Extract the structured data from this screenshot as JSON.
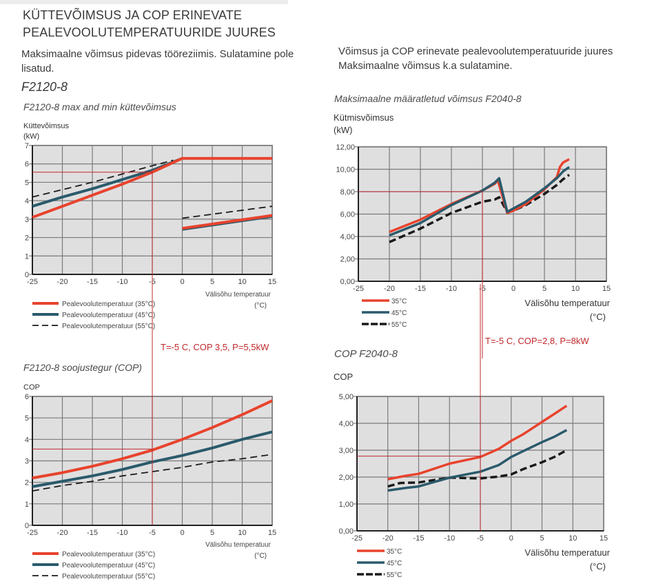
{
  "header": {
    "title": "KÜTTEVÕIMSUS JA COP ERINEVATE PEALEVOOLUTEMPERATUURIDE JUURES",
    "desc_left": "Maksimaalne võimsus pidevas tööreziimis. Sulatamine pole lisatud.",
    "desc_right": "Võimsus ja COP erinevate pealevoolutemperatuuride juures Maksimaalne võimsus k.a sulatamine.",
    "model_left": "F2120-8"
  },
  "annotations": {
    "left": "T=-5 C, COP 3,5, P=5,5kW",
    "right": "T=-5 C, COP=2,8, P=8kW"
  },
  "colors": {
    "series_35": "#e8432d",
    "series_45": "#2a5a6b",
    "series_55": "#1a1a1a",
    "plot_bg": "#e0dfe0",
    "grid": "#7a7a7a",
    "marker_line": "#c0282c"
  },
  "chart_data": [
    {
      "id": "f2120_power",
      "type": "line",
      "title": "F2120-8 max and min küttevõimsus",
      "ylabel": "Küttevõimsus (kW)",
      "xlabel": "Välisõhu temperatuur (°C)",
      "xlim": [
        -25,
        15
      ],
      "ylim": [
        0,
        7
      ],
      "xticks": [
        -25,
        -20,
        -15,
        -10,
        -5,
        0,
        5,
        10,
        15
      ],
      "yticks": [
        0,
        1,
        2,
        3,
        4,
        5,
        6,
        7
      ],
      "ytick_labels": [
        "0",
        "1",
        "2",
        "3",
        "4",
        "5",
        "6",
        "7"
      ],
      "grid": true,
      "legend_position": "bottom-left",
      "series": [
        {
          "name": "Pealevoolutemperatuur (35°C)",
          "key": "35",
          "segments": [
            [
              [
                -25,
                3.1
              ],
              [
                -20,
                3.7
              ],
              [
                -15,
                4.3
              ],
              [
                -10,
                4.9
              ],
              [
                -5,
                5.55
              ],
              [
                0,
                6.3
              ],
              [
                15,
                6.3
              ]
            ],
            [
              [
                0,
                2.5
              ],
              [
                15,
                3.2
              ]
            ]
          ]
        },
        {
          "name": "Pealevoolutemperatuur (45°C)",
          "key": "45",
          "segments": [
            [
              [
                -25,
                3.7
              ],
              [
                -20,
                4.2
              ],
              [
                -15,
                4.65
              ],
              [
                -10,
                5.15
              ],
              [
                -5,
                5.65
              ],
              [
                0,
                6.3
              ]
            ],
            [
              [
                0,
                2.45
              ],
              [
                15,
                3.15
              ]
            ]
          ]
        },
        {
          "name": "Pealevoolutemperatuur (55°C)",
          "key": "55",
          "segments": [
            [
              [
                -25,
                4.2
              ],
              [
                -20,
                4.6
              ],
              [
                -15,
                5.0
              ],
              [
                -10,
                5.45
              ],
              [
                -5,
                5.9
              ],
              [
                -1.5,
                6.2
              ]
            ],
            [
              [
                0,
                3.05
              ],
              [
                15,
                3.7
              ]
            ]
          ]
        }
      ],
      "marker": {
        "x": -5,
        "y": 5.55
      }
    },
    {
      "id": "f2040_power",
      "type": "line",
      "title": "Maksimaalne määratletud võimsus F2040-8",
      "ylabel": "Kütmisvõimsus (kW)",
      "xlabel": "Välisõhu temperatuur (°C)",
      "xlim": [
        -25,
        15
      ],
      "ylim": [
        0,
        12
      ],
      "xticks": [
        -25,
        -20,
        -15,
        -10,
        -5,
        0,
        5,
        10,
        15
      ],
      "yticks": [
        0,
        2,
        4,
        6,
        8,
        10,
        12
      ],
      "ytick_labels": [
        "0,00",
        "2,00",
        "4,00",
        "6,00",
        "8,00",
        "10,00",
        "12,00"
      ],
      "grid": true,
      "legend_position": "bottom-left",
      "series": [
        {
          "name": "35°C",
          "key": "35",
          "segments": [
            [
              [
                -20,
                4.4
              ],
              [
                -15,
                5.5
              ],
              [
                -10,
                6.9
              ],
              [
                -5,
                8.1
              ],
              [
                -3,
                8.7
              ],
              [
                -2.5,
                9.0
              ],
              [
                -1,
                6.1
              ],
              [
                0,
                6.3
              ],
              [
                2,
                6.9
              ],
              [
                5,
                8.2
              ],
              [
                7,
                9.3
              ],
              [
                7.5,
                10.2
              ],
              [
                8,
                10.6
              ],
              [
                9,
                10.9
              ]
            ]
          ]
        },
        {
          "name": "45°C",
          "key": "45",
          "segments": [
            [
              [
                -20,
                4.1
              ],
              [
                -15,
                5.2
              ],
              [
                -10,
                6.8
              ],
              [
                -5,
                8.1
              ],
              [
                -3,
                8.8
              ],
              [
                -2.3,
                9.2
              ],
              [
                -1,
                6.2
              ],
              [
                0,
                6.5
              ],
              [
                2,
                7.1
              ],
              [
                5,
                8.3
              ],
              [
                7,
                9.2
              ],
              [
                8,
                9.8
              ],
              [
                9,
                10.2
              ]
            ]
          ]
        },
        {
          "name": "55°C",
          "key": "55",
          "segments": [
            [
              [
                -20,
                3.5
              ],
              [
                -15,
                4.7
              ],
              [
                -10,
                6.1
              ],
              [
                -5,
                7.1
              ],
              [
                -3,
                7.3
              ],
              [
                -2.3,
                7.5
              ],
              [
                -1,
                6.2
              ],
              [
                0,
                6.3
              ],
              [
                2,
                6.8
              ],
              [
                5,
                7.8
              ],
              [
                7,
                8.6
              ],
              [
                8,
                9.1
              ],
              [
                9,
                9.5
              ]
            ]
          ]
        }
      ],
      "marker": {
        "x": -5,
        "y": 8.0
      }
    },
    {
      "id": "f2120_cop",
      "type": "line",
      "title": "F2120-8 soojustegur (COP)",
      "ylabel": "COP",
      "xlabel": "Välisõhu temperatuur (°C)",
      "xlim": [
        -25,
        15
      ],
      "ylim": [
        0,
        6
      ],
      "xticks": [
        -25,
        -20,
        -15,
        -10,
        -5,
        0,
        5,
        10,
        15
      ],
      "yticks": [
        0,
        1,
        2,
        3,
        4,
        5,
        6
      ],
      "ytick_labels": [
        "0",
        "1",
        "2",
        "3",
        "4",
        "5",
        "6"
      ],
      "grid": true,
      "legend_position": "bottom-left",
      "series": [
        {
          "name": "Pealevoolutemperatuur (35°C)",
          "key": "35",
          "segments": [
            [
              [
                -25,
                2.2
              ],
              [
                -20,
                2.45
              ],
              [
                -15,
                2.75
              ],
              [
                -10,
                3.1
              ],
              [
                -5,
                3.5
              ],
              [
                0,
                4.0
              ],
              [
                5,
                4.55
              ],
              [
                10,
                5.15
              ],
              [
                15,
                5.8
              ]
            ]
          ]
        },
        {
          "name": "Pealevoolutemperatuur (45°C)",
          "key": "45",
          "segments": [
            [
              [
                -25,
                1.8
              ],
              [
                -20,
                2.05
              ],
              [
                -15,
                2.3
              ],
              [
                -10,
                2.6
              ],
              [
                -5,
                2.95
              ],
              [
                0,
                3.25
              ],
              [
                5,
                3.6
              ],
              [
                10,
                4.0
              ],
              [
                15,
                4.35
              ]
            ]
          ]
        },
        {
          "name": "Pealevoolutemperatuur (55°C)",
          "key": "55",
          "segments": [
            [
              [
                -25,
                1.6
              ],
              [
                -20,
                1.85
              ],
              [
                -15,
                2.05
              ],
              [
                -10,
                2.3
              ],
              [
                -5,
                2.5
              ],
              [
                0,
                2.7
              ],
              [
                5,
                2.95
              ],
              [
                10,
                3.1
              ],
              [
                15,
                3.3
              ]
            ]
          ]
        }
      ],
      "marker": {
        "x": -5,
        "y": 3.55
      }
    },
    {
      "id": "f2040_cop",
      "type": "line",
      "title": "COP F2040-8",
      "ylabel": "COP",
      "xlabel": "Välisõhu temperatuur (°C)",
      "xlim": [
        -25,
        15
      ],
      "ylim": [
        0,
        5
      ],
      "xticks": [
        -25,
        -20,
        -15,
        -10,
        -5,
        0,
        5,
        10,
        15
      ],
      "yticks": [
        0,
        1,
        2,
        3,
        4,
        5
      ],
      "ytick_labels": [
        "0,00",
        "1,00",
        "2,00",
        "3,00",
        "4,00",
        "5,00"
      ],
      "grid": true,
      "legend_position": "bottom-left",
      "series": [
        {
          "name": "35°C",
          "key": "35",
          "segments": [
            [
              [
                -20,
                1.92
              ],
              [
                -17,
                2.05
              ],
              [
                -15,
                2.12
              ],
              [
                -10,
                2.5
              ],
              [
                -5,
                2.75
              ],
              [
                -2,
                3.05
              ],
              [
                0,
                3.35
              ],
              [
                2,
                3.6
              ],
              [
                5,
                4.05
              ],
              [
                7,
                4.35
              ],
              [
                9,
                4.65
              ]
            ]
          ]
        },
        {
          "name": "45°C",
          "key": "45",
          "segments": [
            [
              [
                -20,
                1.5
              ],
              [
                -17,
                1.6
              ],
              [
                -15,
                1.65
              ],
              [
                -10,
                1.98
              ],
              [
                -5,
                2.2
              ],
              [
                -2,
                2.45
              ],
              [
                0,
                2.75
              ],
              [
                2,
                2.97
              ],
              [
                5,
                3.3
              ],
              [
                7,
                3.5
              ],
              [
                9,
                3.75
              ]
            ]
          ]
        },
        {
          "name": "55°C",
          "key": "55",
          "segments": [
            [
              [
                -20,
                1.65
              ],
              [
                -18,
                1.78
              ],
              [
                -15,
                1.8
              ],
              [
                -10,
                1.98
              ],
              [
                -5,
                1.95
              ],
              [
                -2,
                2.02
              ],
              [
                0,
                2.1
              ],
              [
                2,
                2.3
              ],
              [
                5,
                2.55
              ],
              [
                7,
                2.75
              ],
              [
                9,
                3.0
              ]
            ]
          ]
        }
      ],
      "marker": {
        "x": -5,
        "y": 2.78
      }
    }
  ]
}
